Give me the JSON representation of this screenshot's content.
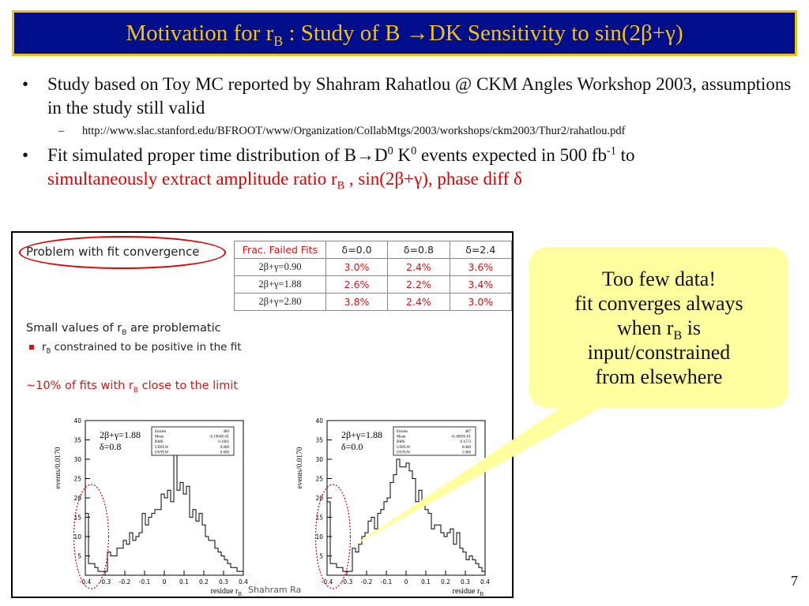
{
  "title": {
    "prefix": "Motivation for r",
    "sub": "B",
    "middle": " : Study of B ",
    "arrow": "→",
    "suffix": "DK Sensitivity to sin(2β+γ)"
  },
  "bullets": {
    "b1_text": "Study based on Toy MC reported by Shahram Rahatlou @ CKM Angles Workshop 2003, assumptions in the study still valid",
    "b1_link": "http://www.slac.stanford.edu/BFROOT/www/Organization/CollabMtgs/2003/workshops/ckm2003/Thur2/rahatlou.pdf",
    "b2_a": "Fit simulated proper time distribution of B",
    "b2_arrow": "→",
    "b2_d": "D",
    "b2_d_sup": "0",
    "b2_k": " K",
    "b2_k_sup": "0",
    "b2_b": " events expected in 500 fb",
    "b2_fb_sup": "-1",
    "b2_c": " to",
    "b2_red1": "simultaneously extract amplitude ratio r",
    "b2_red_sub": "B",
    "b2_red2": " , sin(2β+γ),  phase diff δ"
  },
  "embed": {
    "heading": "Problem with fit convergence",
    "small_values_a": "Small values of r",
    "small_values_sub": "B",
    "small_values_b": " are problematic",
    "constrained_a": "r",
    "constrained_sub": "B",
    "constrained_b": " constrained to be positive in the fit",
    "percent_a": "~10% of fits with r",
    "percent_sub": "B",
    "percent_b": " close to the limit",
    "author": "Shahram Ra",
    "table": {
      "corner": "Frac. Failed Fits",
      "columns": [
        "δ=0.0",
        "δ=0.8",
        "δ=2.4"
      ],
      "rows": [
        {
          "label": "2β+γ=0.90",
          "values": [
            "3.0%",
            "2.4%",
            "3.6%"
          ]
        },
        {
          "label": "2β+γ=1.88",
          "values": [
            "2.6%",
            "2.2%",
            "3.4%"
          ]
        },
        {
          "label": "2β+γ=2.80",
          "values": [
            "3.8%",
            "2.4%",
            "3.0%"
          ]
        }
      ]
    }
  },
  "chart_data": [
    {
      "type": "line",
      "title": "",
      "annotation": [
        "2β+γ=1.88",
        "δ=0.8"
      ],
      "xlabel": "residue r_B",
      "ylabel": "events/0.0170",
      "xlim": [
        -0.4,
        0.4
      ],
      "ylim": [
        0,
        40
      ],
      "xticks": [
        "-0.4",
        "-0.3",
        "-0.2",
        "-0.1",
        "0",
        "0.1",
        "0.2",
        "0.3",
        "0.4"
      ],
      "yticks": [
        "5",
        "10",
        "15",
        "20",
        "25",
        "30",
        "35",
        "40"
      ],
      "stats": [
        [
          "Entries",
          "489"
        ],
        [
          "Mean",
          "-0.1904E-01"
        ],
        [
          "RMS",
          "0.1605"
        ],
        [
          "UDFLW",
          "0.000"
        ],
        [
          "OVFLW",
          "0.000"
        ]
      ],
      "values": [
        16,
        3,
        3,
        2,
        1,
        1,
        1,
        6,
        5,
        5,
        7,
        7,
        9,
        8,
        11,
        9,
        10,
        11,
        16,
        13,
        15,
        16,
        17,
        17,
        21,
        20,
        22,
        19,
        35,
        22,
        24,
        21,
        23,
        15,
        17,
        14,
        16,
        13,
        10,
        9,
        9,
        7,
        6,
        5,
        4,
        3,
        2,
        2,
        1,
        1
      ]
    },
    {
      "type": "line",
      "title": "",
      "annotation": [
        "2β+γ=1.88",
        "δ=0.0"
      ],
      "xlabel": "residue r_B",
      "ylabel": "events/0.0170",
      "xlim": [
        -0.4,
        0.4
      ],
      "ylim": [
        0,
        40
      ],
      "xticks": [
        "-0.4",
        "-0.3",
        "-0.2",
        "-0.1",
        "0",
        "0.1",
        "0.2",
        "0.3",
        "0.4"
      ],
      "yticks": [
        "5",
        "10",
        "15",
        "20",
        "25",
        "30",
        "35",
        "40"
      ],
      "stats": [
        [
          "Entries",
          "487"
        ],
        [
          "Mean",
          "-0.3485E-01"
        ],
        [
          "RMS",
          "0.1573"
        ],
        [
          "UDFLW",
          "0.000"
        ],
        [
          "OVFLW",
          "1.000"
        ]
      ],
      "values": [
        19,
        3,
        3,
        2,
        2,
        1,
        1,
        1,
        7,
        6,
        8,
        10,
        11,
        14,
        15,
        12,
        16,
        17,
        19,
        20,
        24,
        26,
        30,
        28,
        28,
        29,
        27,
        25,
        19,
        22,
        19,
        17,
        16,
        12,
        13,
        13,
        11,
        10,
        11,
        12,
        8,
        11,
        7,
        6,
        4,
        5,
        4,
        3,
        2,
        1
      ]
    }
  ],
  "callout": {
    "line1": "Too few data!",
    "line2": "fit converges always",
    "line3_a": "when r",
    "line3_sub": "B",
    "line3_b": " is",
    "line4": "input/constrained",
    "line5": "from elsewhere"
  },
  "page_number": "7",
  "colors": {
    "title_bg": "#000e8c",
    "title_border": "#f4c20d",
    "accent_red": "#e00000",
    "callout_bg": "#ffffa0"
  }
}
